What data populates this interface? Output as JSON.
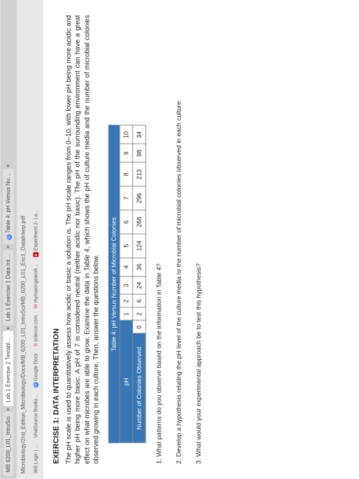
{
  "browser": {
    "tabs": [
      {
        "label": "MB 6200_L01_IntroSci"
      },
      {
        "label": "Lab 1 Exercise 2 Testable Ob"
      },
      {
        "label": "Lab 1 Exercise 1 Data Interpr"
      },
      {
        "label": "Table 4: pH Versus Number of"
      }
    ],
    "path": "Microbiology/2nd_Edition_Microbiology/Docs/MB_6200_L01_IntroSci/MB_6200_L01_Exc1_DataInterp.pdf",
    "bookmarks": [
      {
        "label": "365 Login | ..."
      },
      {
        "label": "VitalSource Books..."
      },
      {
        "label": "Google Docs"
      },
      {
        "label": "science.com"
      },
      {
        "label": "mymaxingework..."
      },
      {
        "label": "Experiment 2- La..."
      }
    ]
  },
  "exercise": {
    "title": "EXERCISE 1: DATA INTERPRETATION",
    "intro": "The pH scale is used to quantitatively assess how acidic or basic a solution is. The pH scale ranges from 0–10, with lower pH being more acidic and higher pH being more basic. A pH of 7 is considered neutral (neither acidic nor basic). The pH of the surrounding environment can have a great effect on what microbes are able to grow. Examine the data in Table 4, which shows the pH of culture media and the number of microbial colonies observed growing in each culture. Then, answer the questions below."
  },
  "table": {
    "title": "Table 4: pH Versus Number of Microbial Colonies",
    "rows": [
      {
        "header": "pH",
        "cells": [
          "1",
          "2",
          "3",
          "4",
          "5",
          "6",
          "7",
          "8",
          "9",
          "10"
        ]
      },
      {
        "header": "Number of Colonies Observed",
        "cells": [
          "0",
          "2",
          "6",
          "24",
          "36",
          "124",
          "268",
          "296",
          "213",
          "98",
          "34"
        ]
      }
    ],
    "header_bg": "#3876b5",
    "header_color": "#ffffff",
    "border_color": "#888888"
  },
  "ph_row_first_cell": "0",
  "questions": {
    "q1": "1. What patterns do you observe based on the information in Table 4?",
    "q2": "2. Develop a hypothesis relating the pH level of the culture media to the number of microbial colonies observed in each culture.",
    "q3": "3. What would your experimental approach be to test this hypothesis?"
  }
}
